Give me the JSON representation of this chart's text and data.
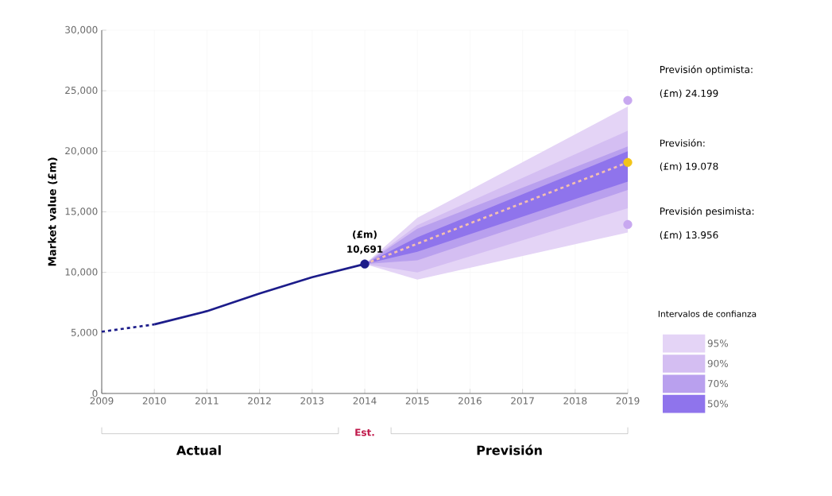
{
  "chart_data": {
    "type": "line",
    "ylabel": "Market value (£m)",
    "legend_title": "Intervalos de confianza",
    "legend": "right",
    "grid": true,
    "xlim": [
      2009,
      2019
    ],
    "xticks": [
      2009,
      2010,
      2011,
      2012,
      2013,
      2014,
      2015,
      2016,
      2017,
      2018,
      2019
    ],
    "ylim": [
      0,
      30000
    ],
    "yticks": [
      0,
      {
        "value": 5000,
        "label": "5,000"
      },
      {
        "value": 10000,
        "label": "10,000"
      },
      {
        "value": 15000,
        "label": "15,000"
      },
      {
        "value": 20000,
        "label": "20,000"
      },
      {
        "value": 25000,
        "label": "25,000"
      },
      {
        "value": 30000,
        "label": "30,000"
      }
    ],
    "series": [
      {
        "color": "#1c1c8a",
        "line_style": "dashed",
        "x": [
          2009,
          2010
        ],
        "values": [
          5100,
          5700
        ]
      },
      {
        "color": "#1c1c8a",
        "line_style": "solid",
        "x": [
          2010,
          2011,
          2012,
          2013,
          2014
        ],
        "values": [
          5700,
          6800,
          8250,
          9600,
          10691
        ]
      },
      {
        "type": "area",
        "name": "95%",
        "color": "#e4d4f6",
        "x": [
          2014,
          2015,
          2019
        ],
        "values": [
          null,
          null,
          null
        ],
        "lower": [
          10691,
          9400,
          13300
        ],
        "upper": [
          10691,
          14500,
          23700
        ]
      },
      {
        "type": "area",
        "name": "90%",
        "color": "#d4bef2",
        "x": [
          2014,
          2015,
          2019
        ],
        "values": [
          null,
          null,
          null
        ],
        "lower": [
          10691,
          10000,
          15300
        ],
        "upper": [
          10691,
          13900,
          21700
        ]
      },
      {
        "type": "area",
        "name": "70%",
        "color": "#b9a0ee",
        "x": [
          2014,
          2015,
          2019
        ],
        "values": [
          null,
          null,
          null
        ],
        "lower": [
          10691,
          11000,
          16800
        ],
        "upper": [
          10691,
          13600,
          20400
        ]
      },
      {
        "type": "area",
        "name": "50%",
        "color": "#8f74ec",
        "x": [
          2014,
          2015,
          2019
        ],
        "values": [
          null,
          null,
          null
        ],
        "lower": [
          10691,
          11700,
          17500
        ],
        "upper": [
          10691,
          12900,
          20000
        ]
      },
      {
        "color": "#f4c0b0",
        "line_style": "dashed",
        "x": [
          2014,
          2019
        ],
        "values": [
          10691,
          19078
        ]
      },
      {
        "type": "scatter",
        "marker": "circle",
        "color": "#1c1c8a",
        "x": [
          2014
        ],
        "values": [
          10691
        ],
        "value_labels": [
          "10,691"
        ]
      },
      {
        "type": "scatter",
        "marker": "circle",
        "color": "#c8a8f0",
        "x": [
          2019
        ],
        "values": [
          24199
        ]
      },
      {
        "type": "scatter",
        "marker": "circle",
        "color": "#f2c418",
        "x": [
          2019
        ],
        "values": [
          19078
        ]
      },
      {
        "type": "scatter",
        "marker": "circle",
        "color": "#c8a8f0",
        "x": [
          2019
        ],
        "values": [
          13956
        ]
      }
    ],
    "annotations": [
      {
        "text": "(£m)",
        "x": 2014,
        "y": 10691
      },
      "Previsión optimista:",
      "(£m) 24.199",
      "Previsión:",
      "(£m) 19.078",
      "Previsión pesimista:",
      "(£m) 13.956",
      "Actual",
      "Est.",
      "Previsión"
    ]
  }
}
